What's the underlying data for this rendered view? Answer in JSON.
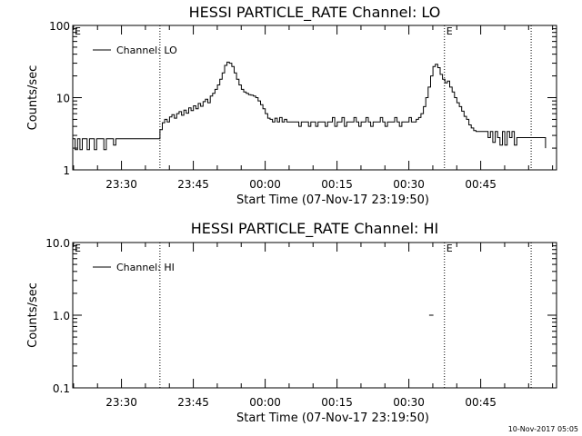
{
  "chart_data": [
    {
      "type": "line",
      "title": "HESSI PARTICLE_RATE Channel: LO",
      "xlabel": "Start Time (07-Nov-17 23:19:50)",
      "ylabel": "Counts/sec",
      "yscale": "log",
      "ylim": [
        1,
        100
      ],
      "ytick_labels": [
        "1",
        "10",
        "100"
      ],
      "xlim_minutes": [
        0,
        101
      ],
      "xtick_labels": [
        "23:30",
        "23:45",
        "00:00",
        "00:15",
        "00:30",
        "00:45"
      ],
      "legend": {
        "entries": [
          "Channel: LO"
        ],
        "position": "top-left"
      },
      "grid": false,
      "markers": [
        {
          "label": "E",
          "x_minutes": 0
        },
        {
          "label": "",
          "x_minutes": 18.2
        },
        {
          "label": "E",
          "x_minutes": 77.6
        },
        {
          "label": "",
          "x_minutes": 95.7
        }
      ],
      "series": [
        {
          "name": "Channel: LO",
          "x": [
            0,
            0.5,
            1.0,
            1.5,
            2.0,
            2.5,
            3.0,
            3.5,
            4.0,
            4.5,
            5.0,
            5.5,
            6.0,
            6.5,
            7.0,
            7.5,
            8.0,
            8.5,
            9.0,
            9.5,
            10.0,
            11.0,
            12.0,
            13.0,
            14.0,
            15.0,
            16.0,
            17.0,
            18.2,
            18.7,
            19.2,
            19.7,
            20.2,
            20.7,
            21.2,
            21.7,
            22.2,
            22.7,
            23.2,
            23.7,
            24.2,
            24.7,
            25.2,
            25.7,
            26.2,
            26.7,
            27.2,
            27.7,
            28.2,
            28.7,
            29.2,
            29.7,
            30.2,
            30.7,
            31.2,
            31.7,
            32.2,
            32.7,
            33.2,
            33.7,
            34.2,
            34.7,
            35.2,
            35.7,
            36.2,
            36.7,
            37.2,
            37.7,
            38.2,
            38.7,
            39.2,
            39.7,
            40.2,
            40.7,
            41.2,
            41.7,
            42.2,
            42.7,
            43.2,
            43.7,
            44.2,
            44.7,
            45.2,
            45.7,
            46.2,
            46.7,
            47.2,
            47.7,
            48.2,
            48.7,
            49.2,
            49.7,
            50.2,
            50.7,
            51.2,
            51.7,
            52.2,
            52.7,
            53.2,
            53.7,
            54.2,
            54.7,
            55.2,
            55.7,
            56.2,
            56.7,
            57.2,
            57.7,
            58.2,
            58.7,
            59.2,
            59.7,
            60.2,
            60.7,
            61.2,
            61.7,
            62.2,
            62.7,
            63.2,
            63.7,
            64.2,
            64.7,
            65.2,
            65.7,
            66.2,
            66.7,
            67.2,
            67.7,
            68.2,
            68.7,
            69.2,
            69.7,
            70.2,
            70.7,
            71.2,
            71.7,
            72.2,
            72.7,
            73.2,
            73.7,
            74.2,
            74.7,
            75.2,
            75.7,
            76.2,
            76.7,
            77.2,
            77.7,
            78.2,
            78.7,
            79.2,
            79.7,
            80.2,
            80.7,
            81.2,
            81.7,
            82.2,
            82.7,
            83.2,
            83.7,
            84.2,
            84.7,
            85.2,
            85.7,
            86.2,
            86.7,
            87.2,
            87.7,
            88.2,
            88.7,
            89.2,
            89.7,
            90.2,
            90.7,
            91.2,
            91.7,
            92.2,
            92.7,
            93.2,
            93.7,
            94.2,
            94.7,
            95.2,
            95.7,
            96.2,
            96.7,
            97.2,
            97.7,
            98.2,
            98.7
          ],
          "y": [
            2.7,
            1.9,
            2.7,
            1.9,
            2.7,
            2.7,
            1.9,
            2.7,
            2.7,
            1.9,
            2.7,
            2.7,
            2.7,
            1.9,
            2.7,
            2.7,
            2.7,
            2.2,
            2.7,
            2.7,
            2.7,
            2.7,
            2.7,
            2.7,
            2.7,
            2.7,
            2.7,
            2.7,
            3.6,
            4.5,
            5.0,
            4.6,
            5.4,
            5.8,
            5.2,
            6.0,
            6.4,
            5.7,
            6.7,
            6.1,
            7.2,
            6.6,
            7.7,
            7.0,
            8.3,
            7.6,
            8.8,
            9.5,
            8.5,
            10.5,
            11.5,
            13.0,
            15.0,
            18.0,
            22.0,
            28.0,
            31.0,
            30.0,
            27.0,
            22.0,
            18.0,
            15.0,
            13.0,
            12.0,
            11.5,
            11.0,
            10.8,
            10.5,
            10.0,
            9.0,
            8.0,
            7.0,
            6.0,
            5.2,
            5.0,
            4.6,
            5.2,
            4.6,
            5.3,
            4.6,
            5.0,
            4.6,
            4.6,
            4.6,
            4.6,
            4.6,
            4.0,
            4.6,
            4.6,
            4.6,
            4.0,
            4.6,
            4.6,
            4.0,
            4.6,
            4.6,
            4.6,
            4.0,
            4.6,
            4.6,
            5.3,
            4.0,
            4.6,
            4.6,
            5.3,
            4.0,
            4.6,
            4.6,
            4.6,
            5.3,
            4.6,
            4.0,
            4.6,
            4.6,
            5.3,
            4.6,
            4.0,
            4.6,
            4.6,
            4.6,
            5.3,
            4.6,
            4.0,
            4.6,
            4.6,
            4.6,
            5.3,
            4.6,
            4.0,
            4.6,
            4.6,
            4.6,
            5.3,
            4.6,
            4.6,
            5.0,
            5.3,
            6.0,
            7.5,
            10.0,
            14.0,
            20.0,
            27.0,
            29.0,
            26.0,
            21.0,
            18.0,
            16.0,
            17.0,
            14.0,
            12.0,
            10.0,
            8.5,
            7.5,
            6.5,
            5.5,
            5.0,
            4.2,
            3.8,
            3.5,
            3.4,
            3.4,
            3.4,
            3.4,
            3.4,
            2.8,
            3.4,
            2.4,
            3.4,
            2.8,
            2.2,
            3.4,
            2.2,
            3.4,
            2.8,
            3.4,
            2.2,
            2.8,
            2.8,
            2.8,
            2.8,
            2.8,
            2.8,
            2.8,
            2.8,
            2.8,
            2.8,
            2.8,
            2.8,
            2.0
          ]
        }
      ]
    },
    {
      "type": "line",
      "title": "HESSI PARTICLE_RATE Channel: HI",
      "xlabel": "Start Time (07-Nov-17 23:19:50)",
      "ylabel": "Counts/sec",
      "yscale": "log",
      "ylim": [
        0.1,
        10.0
      ],
      "ytick_labels": [
        "0.1",
        "1.0",
        "10.0"
      ],
      "xlim_minutes": [
        0,
        101
      ],
      "xtick_labels": [
        "23:30",
        "23:45",
        "00:00",
        "00:15",
        "00:30",
        "00:45"
      ],
      "legend": {
        "entries": [
          "Channel: HI"
        ],
        "position": "top-left"
      },
      "grid": false,
      "markers": [
        {
          "label": "E",
          "x_minutes": 0
        },
        {
          "label": "",
          "x_minutes": 18.2
        },
        {
          "label": "E",
          "x_minutes": 77.6
        },
        {
          "label": "",
          "x_minutes": 95.7
        }
      ],
      "series": [
        {
          "name": "Channel: HI",
          "x": [
            74.4,
            75.3
          ],
          "y": [
            1.0,
            1.0
          ]
        }
      ]
    }
  ],
  "footer": {
    "timestamp": "10-Nov-2017 05:05"
  }
}
